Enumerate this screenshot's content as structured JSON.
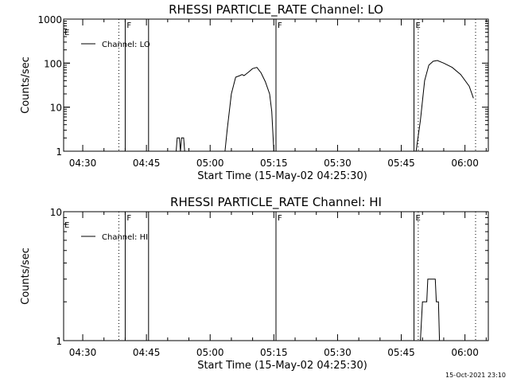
{
  "footer": {
    "stamp": "15-Oct-2021 23:10"
  },
  "chart_data": [
    {
      "type": "line",
      "title": "RHESSI PARTICLE_RATE Channel: LO",
      "xlabel": "Start Time (15-May-02 04:25:30)",
      "ylabel": "Counts/sec",
      "y_scale": "log",
      "ylim": [
        1,
        1000
      ],
      "y_ticks": [
        1,
        10,
        100,
        1000
      ],
      "y_tick_labels": [
        "1",
        "10",
        "100",
        "1000"
      ],
      "xlim": [
        "04:25:30",
        "06:05:30"
      ],
      "x_ticks": [
        "04:30",
        "04:45",
        "05:00",
        "05:15",
        "05:30",
        "05:45",
        "06:00"
      ],
      "legend": {
        "position": "top-left",
        "entries": [
          "Channel: LO"
        ]
      },
      "markers": [
        {
          "time": "04:38:30",
          "style": "dotted",
          "label": ""
        },
        {
          "time": "04:40:00",
          "style": "solid",
          "label": "F"
        },
        {
          "time": "04:45:30",
          "style": "solid",
          "label": ""
        },
        {
          "time": "05:15:30",
          "style": "solid",
          "label": "F"
        },
        {
          "time": "05:48:00",
          "style": "solid",
          "label": "E"
        },
        {
          "time": "05:49:00",
          "style": "dotted",
          "label": ""
        },
        {
          "time": "06:02:30",
          "style": "dotted",
          "label": ""
        }
      ],
      "edge_labels": [
        "E"
      ],
      "series": [
        {
          "values": [
            [
              "04:52:00",
              1
            ],
            [
              "04:52:15",
              2
            ],
            [
              "04:52:45",
              2
            ],
            [
              "04:53:00",
              1
            ],
            [
              "04:53:15",
              2
            ],
            [
              "04:53:45",
              2
            ],
            [
              "04:54:00",
              1
            ],
            [
              "05:03:30",
              1
            ],
            [
              "05:04:00",
              3
            ],
            [
              "05:05:00",
              20
            ],
            [
              "05:06:00",
              48
            ],
            [
              "05:07:00",
              52
            ],
            [
              "05:07:30",
              55
            ],
            [
              "05:08:00",
              52
            ],
            [
              "05:09:00",
              62
            ],
            [
              "05:10:00",
              75
            ],
            [
              "05:11:00",
              80
            ],
            [
              "05:12:00",
              60
            ],
            [
              "05:13:00",
              38
            ],
            [
              "05:14:00",
              20
            ],
            [
              "05:14:30",
              8
            ],
            [
              "05:15:00",
              1
            ],
            [
              "05:48:30",
              1
            ],
            [
              "05:49:30",
              5
            ],
            [
              "05:50:30",
              40
            ],
            [
              "05:51:30",
              90
            ],
            [
              "05:52:30",
              110
            ],
            [
              "05:53:30",
              115
            ],
            [
              "05:55:00",
              100
            ],
            [
              "05:57:00",
              80
            ],
            [
              "05:59:00",
              55
            ],
            [
              "06:01:00",
              30
            ],
            [
              "06:02:00",
              16
            ]
          ]
        }
      ]
    },
    {
      "type": "line",
      "title": "RHESSI PARTICLE_RATE Channel: HI",
      "xlabel": "Start Time (15-May-02 04:25:30)",
      "ylabel": "Counts/sec",
      "y_scale": "log",
      "ylim": [
        1,
        10
      ],
      "y_ticks": [
        1,
        10
      ],
      "y_tick_labels": [
        "1",
        "10"
      ],
      "xlim": [
        "04:25:30",
        "06:05:30"
      ],
      "x_ticks": [
        "04:30",
        "04:45",
        "05:00",
        "05:15",
        "05:30",
        "05:45",
        "06:00"
      ],
      "legend": {
        "position": "top-left",
        "entries": [
          "Channel: HI"
        ]
      },
      "markers": [
        {
          "time": "04:38:30",
          "style": "dotted",
          "label": ""
        },
        {
          "time": "04:40:00",
          "style": "solid",
          "label": "F"
        },
        {
          "time": "04:45:30",
          "style": "solid",
          "label": ""
        },
        {
          "time": "05:15:30",
          "style": "solid",
          "label": "F"
        },
        {
          "time": "05:48:00",
          "style": "solid",
          "label": "E"
        },
        {
          "time": "05:49:00",
          "style": "dotted",
          "label": ""
        },
        {
          "time": "06:02:30",
          "style": "dotted",
          "label": ""
        }
      ],
      "edge_labels": [
        "E"
      ],
      "series": [
        {
          "values": [
            [
              "05:49:30",
              1
            ],
            [
              "05:50:00",
              2
            ],
            [
              "05:51:00",
              2
            ],
            [
              "05:51:15",
              3
            ],
            [
              "05:53:00",
              3
            ],
            [
              "05:53:15",
              2
            ],
            [
              "05:53:45",
              2
            ],
            [
              "05:54:00",
              1
            ]
          ]
        }
      ]
    }
  ]
}
